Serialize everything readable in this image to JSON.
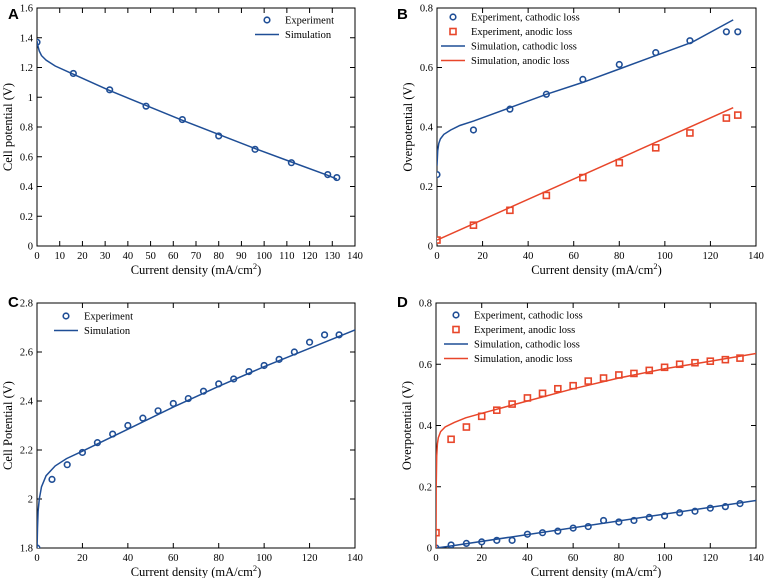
{
  "colors": {
    "blue": "#1f4e96",
    "red": "#e8462a",
    "axis": "#000000"
  },
  "chart_data": [
    {
      "panel": "A",
      "type": "scatter",
      "xlabel": "Current density (mA/cm",
      "xlabel_sup": "2",
      "xlabel_end": ")",
      "ylabel": "Cell potential (V)",
      "xlim": [
        0,
        140
      ],
      "ylim": [
        0,
        1.6
      ],
      "xticks": [
        0,
        10,
        20,
        30,
        40,
        50,
        60,
        70,
        80,
        90,
        100,
        110,
        120,
        130,
        140
      ],
      "xtick_labels": [
        "0",
        "10",
        "20",
        "30",
        "40",
        "50",
        "60",
        "70",
        "80",
        "90",
        "100",
        "110",
        "120",
        "130",
        "140"
      ],
      "yticks": [
        0,
        0.2,
        0.4,
        0.6,
        0.8,
        1.0,
        1.2,
        1.4,
        1.6
      ],
      "ytick_labels": [
        "0",
        "0.2",
        "0.4",
        "0.6",
        "0.8",
        "1",
        "1.2",
        "1.4",
        "1.6"
      ],
      "legend_position": "top-right",
      "series": [
        {
          "name": "Experiment",
          "kind": "marker-circle",
          "color": "blue",
          "x": [
            0,
            16,
            32,
            48,
            64,
            80,
            96,
            112,
            128,
            132
          ],
          "y": [
            1.37,
            1.16,
            1.05,
            0.94,
            0.85,
            0.74,
            0.65,
            0.56,
            0.48,
            0.46
          ]
        },
        {
          "name": "Simulation",
          "kind": "line",
          "color": "blue",
          "x": [
            0,
            0.3,
            1,
            2,
            4,
            8,
            16,
            32,
            48,
            64,
            80,
            96,
            112,
            128,
            132
          ],
          "y": [
            1.38,
            1.35,
            1.31,
            1.28,
            1.25,
            1.21,
            1.155,
            1.045,
            0.945,
            0.845,
            0.75,
            0.655,
            0.565,
            0.475,
            0.45
          ]
        }
      ]
    },
    {
      "panel": "B",
      "type": "scatter",
      "xlabel": "Current density (mA/cm",
      "xlabel_sup": "2",
      "xlabel_end": ")",
      "ylabel": "Overpotential (V)",
      "xlim": [
        0,
        140
      ],
      "ylim": [
        0,
        0.8
      ],
      "xticks": [
        0,
        20,
        40,
        60,
        80,
        100,
        120,
        140
      ],
      "xtick_labels": [
        "0",
        "20",
        "40",
        "60",
        "80",
        "100",
        "120",
        "140"
      ],
      "yticks": [
        0,
        0.2,
        0.4,
        0.6,
        0.8
      ],
      "ytick_labels": [
        "0",
        "0.2",
        "0.4",
        "0.6",
        "0.8"
      ],
      "legend_position": "top-left",
      "series": [
        {
          "name": "Experiment, cathodic loss",
          "kind": "marker-circle",
          "color": "blue",
          "x": [
            0,
            16,
            32,
            48,
            64,
            80,
            96,
            111,
            127,
            132
          ],
          "y": [
            0.24,
            0.39,
            0.46,
            0.51,
            0.56,
            0.61,
            0.65,
            0.69,
            0.72,
            0.72
          ]
        },
        {
          "name": "Experiment, anodic loss",
          "kind": "marker-square",
          "color": "red",
          "x": [
            0,
            16,
            32,
            48,
            64,
            80,
            96,
            111,
            127,
            132
          ],
          "y": [
            0.02,
            0.07,
            0.12,
            0.17,
            0.23,
            0.28,
            0.33,
            0.38,
            0.43,
            0.44
          ]
        },
        {
          "name": "Simulation, cathodic loss",
          "kind": "line",
          "color": "blue",
          "x": [
            0,
            0.3,
            0.8,
            1.5,
            3,
            6,
            10,
            16,
            32,
            48,
            64,
            80,
            96,
            112,
            130
          ],
          "y": [
            0.27,
            0.32,
            0.345,
            0.36,
            0.375,
            0.39,
            0.405,
            0.42,
            0.465,
            0.51,
            0.55,
            0.595,
            0.64,
            0.685,
            0.76
          ]
        },
        {
          "name": "Simulation, anodic loss",
          "kind": "line",
          "color": "red",
          "x": [
            0,
            130
          ],
          "y": [
            0.02,
            0.465
          ]
        }
      ]
    },
    {
      "panel": "C",
      "type": "scatter",
      "xlabel": "Current density (mA/cm",
      "xlabel_sup": "2",
      "xlabel_end": ")",
      "ylabel": "Cell Potential (V)",
      "xlim": [
        0,
        140
      ],
      "ylim": [
        1.8,
        2.8
      ],
      "xticks": [
        0,
        20,
        40,
        60,
        80,
        100,
        120,
        140
      ],
      "xtick_labels": [
        "0",
        "20",
        "40",
        "60",
        "80",
        "100",
        "120",
        "140"
      ],
      "yticks": [
        1.8,
        2.0,
        2.2,
        2.4,
        2.6,
        2.8
      ],
      "ytick_labels": [
        "1.8",
        "2",
        "2.2",
        "2.4",
        "2.6",
        "2.8"
      ],
      "legend_position": "top-left",
      "series": [
        {
          "name": "Experiment",
          "kind": "marker-circle",
          "color": "blue",
          "x": [
            0,
            6.6,
            13.3,
            20,
            26.6,
            33.3,
            40,
            46.6,
            53.3,
            60,
            66.6,
            73.3,
            80,
            86.6,
            93.3,
            100,
            106.6,
            113.3,
            120,
            126.6,
            133
          ],
          "y": [
            1.8,
            2.08,
            2.14,
            2.19,
            2.23,
            2.265,
            2.3,
            2.33,
            2.36,
            2.39,
            2.41,
            2.44,
            2.47,
            2.49,
            2.52,
            2.545,
            2.57,
            2.6,
            2.64,
            2.67,
            2.67
          ]
        },
        {
          "name": "Simulation",
          "kind": "line",
          "color": "blue",
          "x": [
            0,
            0.2,
            0.5,
            1,
            2,
            4,
            8,
            13,
            20,
            30,
            40,
            60,
            80,
            100,
            120,
            140
          ],
          "y": [
            1.79,
            1.88,
            1.95,
            2.0,
            2.05,
            2.095,
            2.135,
            2.165,
            2.195,
            2.24,
            2.285,
            2.375,
            2.46,
            2.54,
            2.615,
            2.69
          ]
        }
      ]
    },
    {
      "panel": "D",
      "type": "scatter",
      "xlabel": "Current density (mA/cm",
      "xlabel_sup": "2",
      "xlabel_end": ")",
      "ylabel": "Overpotential (V)",
      "xlim": [
        0,
        140
      ],
      "ylim": [
        0,
        0.8
      ],
      "xticks": [
        0,
        20,
        40,
        60,
        80,
        100,
        120,
        140
      ],
      "xtick_labels": [
        "0",
        "20",
        "40",
        "60",
        "80",
        "100",
        "120",
        "140"
      ],
      "yticks": [
        0,
        0.2,
        0.4,
        0.6,
        0.8
      ],
      "ytick_labels": [
        "0",
        "0.2",
        "0.4",
        "0.6",
        "0.8"
      ],
      "legend_position": "top-left",
      "series": [
        {
          "name": "Experiment, cathodic loss",
          "kind": "marker-circle",
          "color": "blue",
          "x": [
            0,
            6.6,
            13.3,
            20,
            26.6,
            33.3,
            40,
            46.6,
            53.3,
            60,
            66.6,
            73.3,
            80,
            86.6,
            93.3,
            100,
            106.6,
            113.3,
            120,
            126.6,
            133
          ],
          "y": [
            0.0,
            0.01,
            0.015,
            0.02,
            0.025,
            0.025,
            0.045,
            0.05,
            0.055,
            0.065,
            0.07,
            0.09,
            0.085,
            0.09,
            0.1,
            0.105,
            0.115,
            0.12,
            0.13,
            0.135,
            0.145
          ]
        },
        {
          "name": "Experiment, anodic loss",
          "kind": "marker-square",
          "color": "red",
          "x": [
            0,
            6.6,
            13.3,
            20,
            26.6,
            33.3,
            40,
            46.6,
            53.3,
            60,
            66.6,
            73.3,
            80,
            86.6,
            93.3,
            100,
            106.6,
            113.3,
            120,
            126.6,
            133
          ],
          "y": [
            0.05,
            0.355,
            0.395,
            0.43,
            0.45,
            0.47,
            0.49,
            0.505,
            0.52,
            0.53,
            0.545,
            0.555,
            0.565,
            0.57,
            0.58,
            0.59,
            0.6,
            0.605,
            0.61,
            0.615,
            0.62
          ]
        },
        {
          "name": "Simulation, cathodic loss",
          "kind": "line",
          "color": "blue",
          "x": [
            0,
            5,
            140
          ],
          "y": [
            0.0,
            0.005,
            0.155
          ]
        },
        {
          "name": "Simulation, anodic loss",
          "kind": "line",
          "color": "red",
          "x": [
            0,
            0.1,
            0.3,
            0.6,
            1,
            2,
            4,
            8,
            13,
            20,
            30,
            40,
            60,
            80,
            100,
            120,
            140
          ],
          "y": [
            0.0,
            0.2,
            0.3,
            0.34,
            0.36,
            0.38,
            0.395,
            0.41,
            0.425,
            0.44,
            0.46,
            0.48,
            0.52,
            0.555,
            0.585,
            0.61,
            0.635
          ]
        }
      ]
    }
  ]
}
